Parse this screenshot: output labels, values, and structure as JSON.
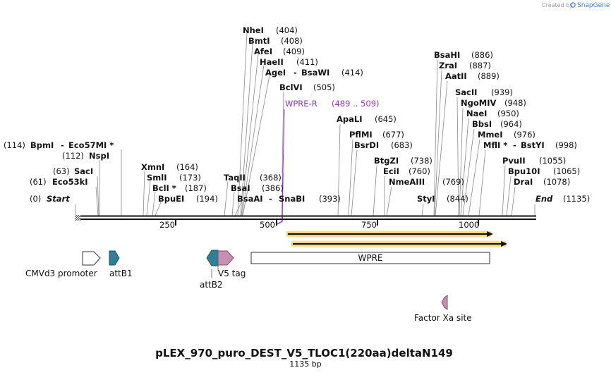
{
  "credit": {
    "prefix": "Created by",
    "brand": "SnapGene"
  },
  "title": "pLEX_970_puro_DEST_V5_TLOC1(220aa)deltaN149",
  "subtitle": "1135 bp",
  "axis": {
    "ticks": [
      "250",
      "500",
      "750",
      "1000"
    ]
  },
  "ends": {
    "start": {
      "name": "Start",
      "pos": "(0)"
    },
    "end": {
      "name": "End",
      "pos": "(1135)"
    }
  },
  "left_sites": [
    {
      "name": "BpmI",
      "sep": "-",
      "name2": "Eco57MI *",
      "pos": "(114)"
    },
    {
      "name": "NspI",
      "pos": "(112)"
    },
    {
      "name": "SacI",
      "pos": "(63)"
    },
    {
      "name": "Eco53kI",
      "pos": "(61)"
    }
  ],
  "sites": [
    {
      "name": "NheI",
      "pos": "(404)"
    },
    {
      "name": "BmtI",
      "pos": "(408)"
    },
    {
      "name": "AfeI",
      "pos": "(409)"
    },
    {
      "name": "HaeII",
      "pos": "(411)"
    },
    {
      "name": "AgeI",
      "sep": "-",
      "name2": "BsaWI",
      "pos": "(414)"
    },
    {
      "name": "BclVI",
      "pos": "(505)"
    },
    {
      "name": "ApaLI",
      "pos": "(645)"
    },
    {
      "name": "PflMI",
      "pos": "(677)"
    },
    {
      "name": "BsrDI",
      "pos": "(683)"
    },
    {
      "name": "BtgZI",
      "pos": "(738)"
    },
    {
      "name": "EciI",
      "pos": "(760)"
    },
    {
      "name": "NmeAIII",
      "pos": "(769)"
    },
    {
      "name": "StyI",
      "pos": "(844)"
    },
    {
      "name": "XmnI",
      "pos": "(164)"
    },
    {
      "name": "SmlI",
      "pos": "(173)"
    },
    {
      "name": "BclI *",
      "pos": "(187)"
    },
    {
      "name": "BpuEI",
      "pos": "(194)"
    },
    {
      "name": "TaqII",
      "pos": "(368)"
    },
    {
      "name": "BsaI",
      "pos": "(386)"
    },
    {
      "name": "BsaAI",
      "sep": "-",
      "name2": "SnaBI",
      "pos": "(393)"
    },
    {
      "name": "BsaHI",
      "pos": "(886)"
    },
    {
      "name": "ZraI",
      "pos": "(887)"
    },
    {
      "name": "AatII",
      "pos": "(889)"
    },
    {
      "name": "SacII",
      "pos": "(939)"
    },
    {
      "name": "NgoMIV",
      "pos": "(948)"
    },
    {
      "name": "NaeI",
      "pos": "(950)"
    },
    {
      "name": "BbsI",
      "pos": "(964)"
    },
    {
      "name": "MmeI",
      "pos": "(976)"
    },
    {
      "name": "MflI *",
      "sep": "-",
      "name2": "BstYI",
      "pos": "(998)"
    },
    {
      "name": "PvuII",
      "pos": "(1055)"
    },
    {
      "name": "Bpu10I",
      "pos": "(1065)"
    },
    {
      "name": "DraI",
      "pos": "(1078)"
    }
  ],
  "primer": {
    "name": "WPRE-R",
    "range": "(489 .. 509)",
    "color": "#9a2fd4"
  },
  "features": [
    {
      "name": "CMVd3 promoter",
      "color": "#ffffff"
    },
    {
      "name": "attB1",
      "color": "#2f7f97"
    },
    {
      "name": "attB2",
      "color": "#2f7f97"
    },
    {
      "name": "V5 tag",
      "color": "#c98fb0"
    },
    {
      "name": "WPRE",
      "color": "#ffffff"
    },
    {
      "name": "Factor Xa site",
      "color": "#c98fb0"
    }
  ],
  "orf_color": "#f2a900"
}
